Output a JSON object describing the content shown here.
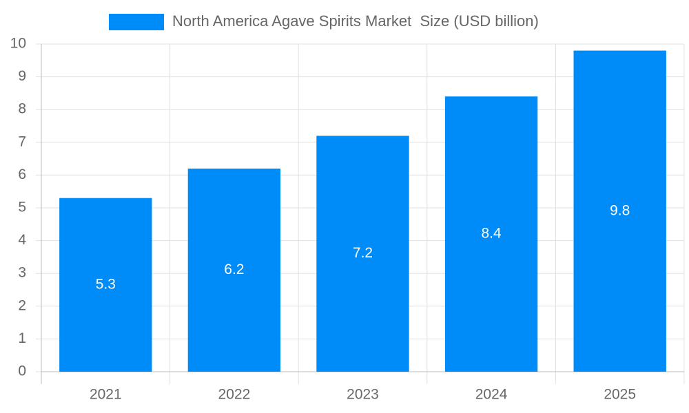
{
  "chart_data": {
    "type": "bar",
    "categories": [
      "2021",
      "2022",
      "2023",
      "2024",
      "2025"
    ],
    "series": [
      {
        "name": "North America Agave Spirits Market  Size (USD billion)",
        "color": "#008cf8",
        "values": [
          5.3,
          6.2,
          7.2,
          8.4,
          9.8
        ]
      }
    ],
    "ylim": [
      0,
      10
    ],
    "yticks": [
      0,
      1,
      2,
      3,
      4,
      5,
      6,
      7,
      8,
      9,
      10
    ],
    "grid": true,
    "legend": "top",
    "data_labels": true
  }
}
